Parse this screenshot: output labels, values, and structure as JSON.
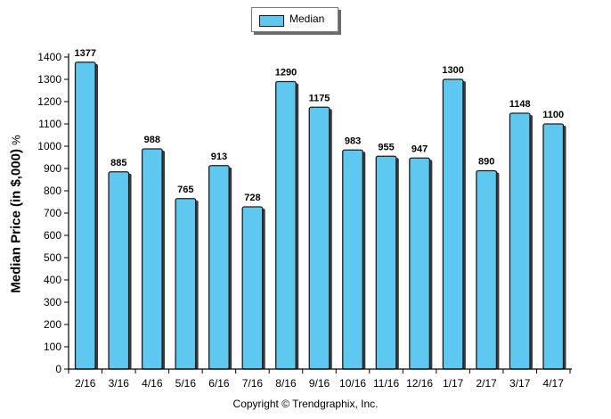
{
  "chart_data": {
    "type": "bar",
    "title": "",
    "legend": {
      "label": "Median",
      "placement": "top-center"
    },
    "ylabel": "Median Price (in $,000)",
    "ylabel_unit": "%",
    "xlabel": "",
    "ylim": [
      0,
      1400
    ],
    "yticks": [
      0,
      100,
      200,
      300,
      400,
      500,
      600,
      700,
      800,
      900,
      1000,
      1100,
      1200,
      1300,
      1400
    ],
    "grid": false,
    "categories": [
      "2/16",
      "3/16",
      "4/16",
      "5/16",
      "6/16",
      "7/16",
      "8/16",
      "9/16",
      "10/16",
      "11/16",
      "12/16",
      "1/17",
      "2/17",
      "3/17",
      "4/17"
    ],
    "series": [
      {
        "name": "Median",
        "values": [
          1377,
          885,
          988,
          765,
          913,
          728,
          1290,
          1175,
          983,
          955,
          947,
          1300,
          890,
          1148,
          1100
        ]
      }
    ],
    "data_labels": true,
    "colors": {
      "bar_fill": "#5ec8f1",
      "bar_stroke": "#1d1d1d",
      "bar_shadow": "#3a3a3a",
      "axis": "#000000"
    }
  },
  "footer": {
    "copyright": "Copyright © Trendgraphix, Inc."
  }
}
